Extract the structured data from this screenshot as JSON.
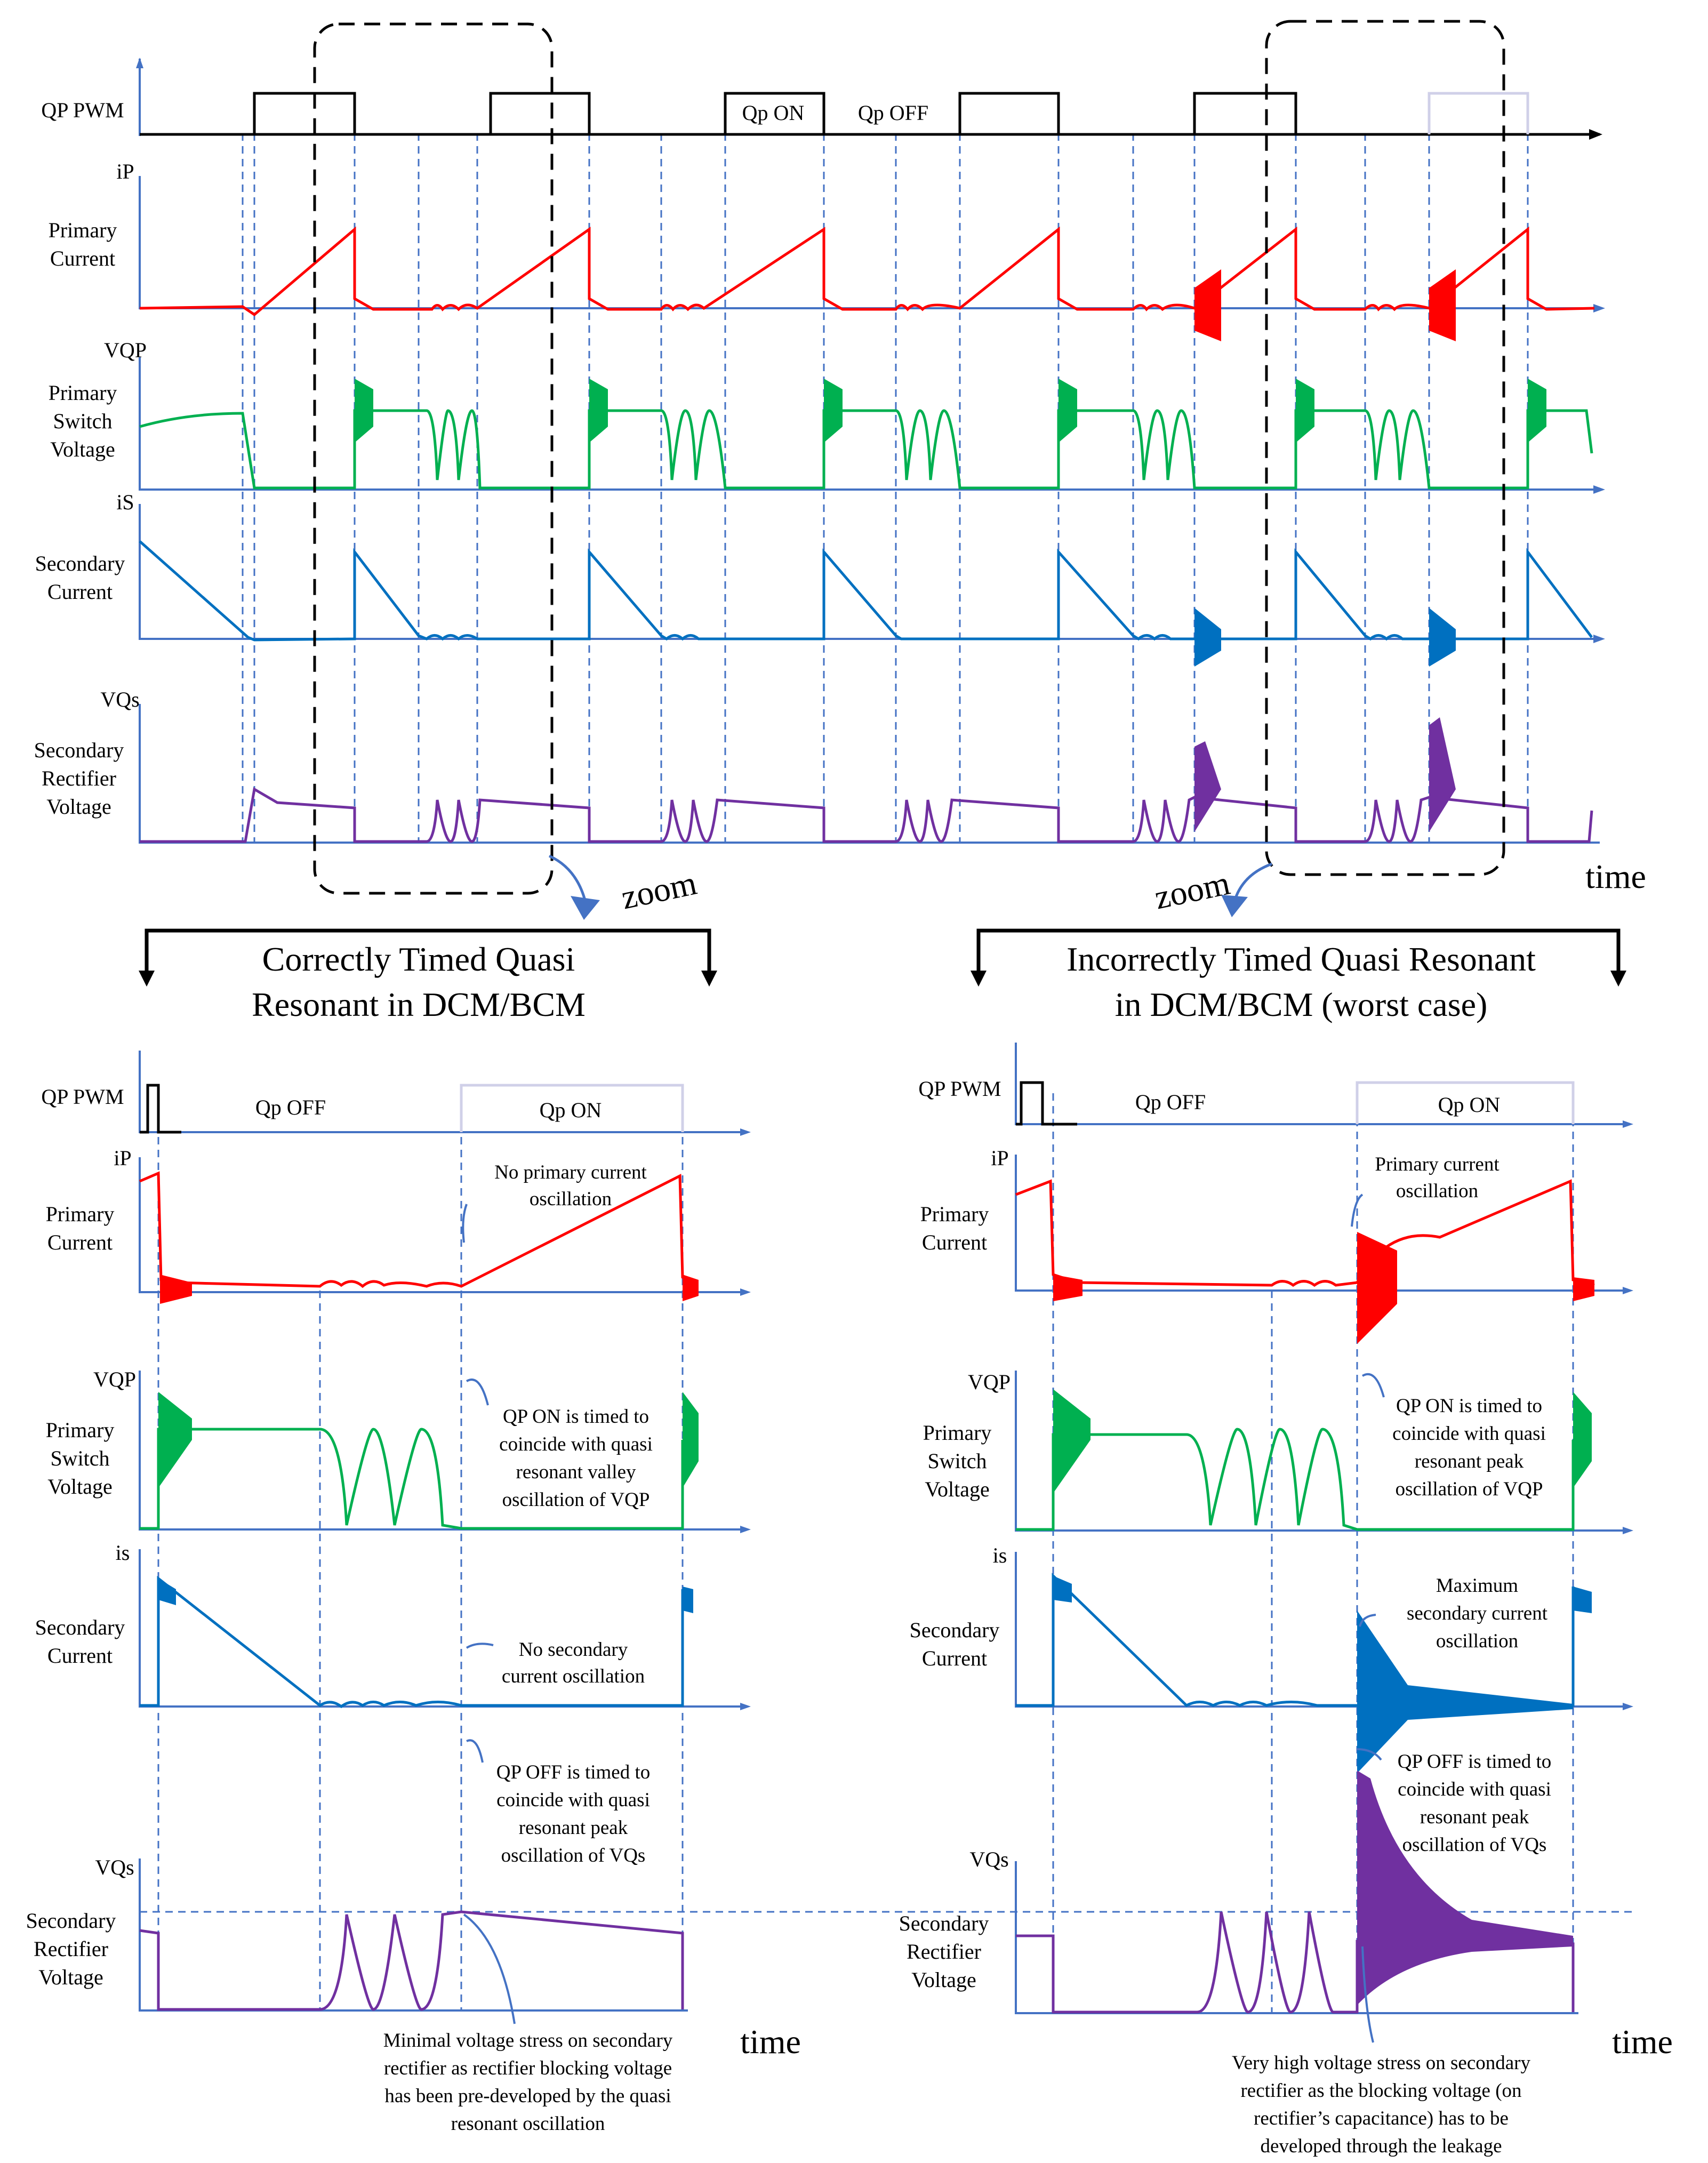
{
  "colors": {
    "primary_current": "#ff0000",
    "primary_voltage": "#00b050",
    "secondary_current": "#0070c0",
    "secondary_voltage": "#7030a0",
    "axis": "#4472c4",
    "pwm": "#000000"
  },
  "top": {
    "pwm_label": "QP PWM",
    "qp_on": "Qp ON",
    "qp_off": "Qp OFF",
    "ip_axis": "iP",
    "primary_current": [
      "Primary",
      "Current"
    ],
    "vqp_axis": "VQP",
    "primary_switch_voltage": [
      "Primary",
      "Switch",
      "Voltage"
    ],
    "is_axis": "iS",
    "secondary_current": [
      "Secondary",
      "Current"
    ],
    "vqs_axis": "VQs",
    "secondary_rectifier_voltage": [
      "Secondary",
      "Rectifier",
      "Voltage"
    ],
    "time": "time",
    "zoom_left": "zoom",
    "zoom_right": "zoom"
  },
  "left_panel": {
    "title": [
      "Correctly Timed Quasi",
      "Resonant in DCM/BCM"
    ],
    "pwm_label": "QP PWM",
    "qp_off": "Qp OFF",
    "qp_on": "Qp ON",
    "ip_axis": "iP",
    "primary_current": [
      "Primary",
      "Current"
    ],
    "vqp_axis": "VQP",
    "primary_switch_voltage": [
      "Primary",
      "Switch",
      "Voltage"
    ],
    "is_axis": "is",
    "secondary_current": [
      "Secondary",
      "Current"
    ],
    "vqs_axis": "VQs",
    "secondary_rectifier_voltage": [
      "Secondary",
      "Rectifier",
      "Voltage"
    ],
    "time": "time",
    "note_primary": [
      "No primary current",
      "oscillation"
    ],
    "note_qp_on": [
      "QP ON is timed to",
      "coincide with quasi",
      "resonant valley",
      "oscillation of VQP"
    ],
    "note_secondary": [
      "No secondary",
      "current oscillation"
    ],
    "note_qp_off": [
      "QP OFF is timed to",
      "coincide with quasi",
      "resonant peak",
      "oscillation of VQs"
    ],
    "note_bottom": [
      "Minimal voltage stress on secondary",
      "rectifier as rectifier blocking voltage",
      "has been pre-developed by the quasi",
      "resonant oscillation"
    ]
  },
  "right_panel": {
    "title": [
      "Incorrectly Timed Quasi Resonant",
      "in DCM/BCM (worst case)"
    ],
    "pwm_label": "QP PWM",
    "qp_off": "Qp OFF",
    "qp_on": "Qp ON",
    "ip_axis": "iP",
    "primary_current": [
      "Primary",
      "Current"
    ],
    "vqp_axis": "VQP",
    "primary_switch_voltage": [
      "Primary",
      "Switch",
      "Voltage"
    ],
    "is_axis": "is",
    "secondary_current": [
      "Secondary",
      "Current"
    ],
    "vqs_axis": "VQs",
    "secondary_rectifier_voltage": [
      "Secondary",
      "Rectifier",
      "Voltage"
    ],
    "time": "time",
    "note_primary": [
      "Primary current",
      "oscillation"
    ],
    "note_qp_on": [
      "QP ON is timed to",
      "coincide with quasi",
      "resonant peak",
      "oscillation of VQP"
    ],
    "note_secondary": [
      "Maximum",
      "secondary current",
      "oscillation"
    ],
    "note_qp_off": [
      "QP OFF is timed to",
      "coincide with quasi",
      "resonant peak",
      "oscillation of VQs"
    ],
    "note_bottom": [
      "Very high voltage stress on secondary",
      "rectifier as the blocking voltage (on",
      "rectifier’s capacitance) has to be",
      "developed through the leakage"
    ]
  }
}
